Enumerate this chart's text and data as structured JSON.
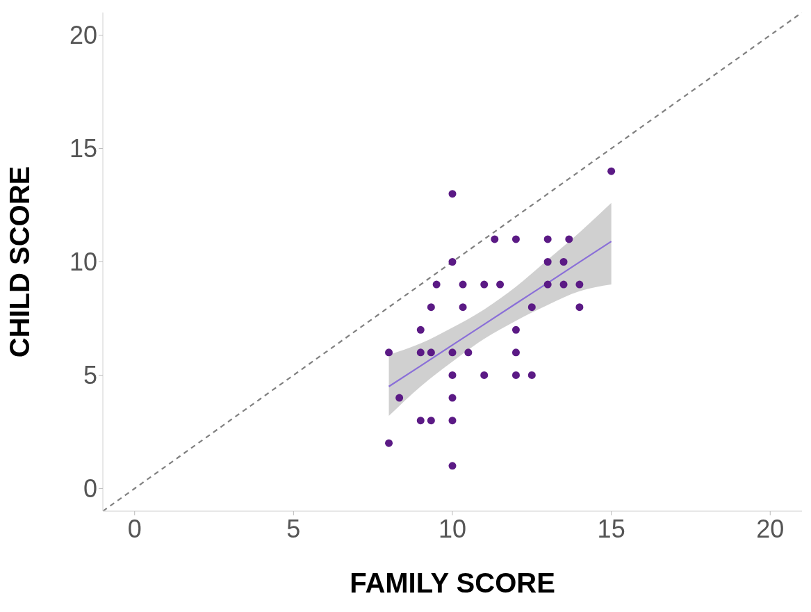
{
  "chart_data": {
    "type": "scatter",
    "xlabel": "FAMILY SCORE",
    "ylabel": "CHILD SCORE",
    "xlim": [
      -1,
      21
    ],
    "ylim": [
      -1,
      21
    ],
    "xticks": [
      0,
      5,
      10,
      15,
      20
    ],
    "yticks": [
      0,
      5,
      10,
      15,
      20
    ],
    "series": [
      {
        "marker": "circle",
        "color": "#5b1a85",
        "x": [
          8,
          8,
          8.33,
          9,
          9,
          9.33,
          9,
          9.33,
          9.33,
          9.5,
          10,
          10,
          10,
          10,
          10,
          10,
          10,
          10.33,
          10.33,
          10.5,
          11,
          11,
          11.33,
          11.5,
          12,
          12,
          12,
          12,
          12.5,
          12.5,
          13,
          13,
          13,
          13.67,
          13.5,
          13.5,
          14,
          14,
          15
        ],
        "values": [
          6,
          2,
          4,
          7,
          6,
          6,
          3,
          3,
          8,
          9,
          13,
          10,
          6,
          5,
          4,
          3,
          1,
          8,
          9,
          6,
          5,
          9,
          11,
          9,
          11,
          7,
          6,
          5,
          8,
          5,
          11,
          10,
          9,
          11,
          10,
          9,
          9,
          8,
          14
        ]
      },
      {
        "type": "line",
        "marker": "none",
        "color": "#8a6fd8",
        "x": [
          8,
          9,
          10,
          11,
          12,
          13,
          14,
          15
        ],
        "values": [
          4.5,
          5.41,
          6.33,
          7.24,
          8.16,
          9.07,
          9.99,
          10.9
        ],
        "lower": [
          3.2,
          4.5,
          5.6,
          6.6,
          7.4,
          8.1,
          8.7,
          9.0
        ],
        "upper": [
          5.9,
          6.4,
          7.1,
          7.9,
          8.9,
          10.1,
          11.3,
          12.6
        ]
      },
      {
        "type": "line",
        "marker": "none",
        "line_style": "dashed",
        "color": "#808080",
        "x": [
          -1,
          21
        ],
        "values": [
          -1,
          21
        ]
      }
    ]
  }
}
